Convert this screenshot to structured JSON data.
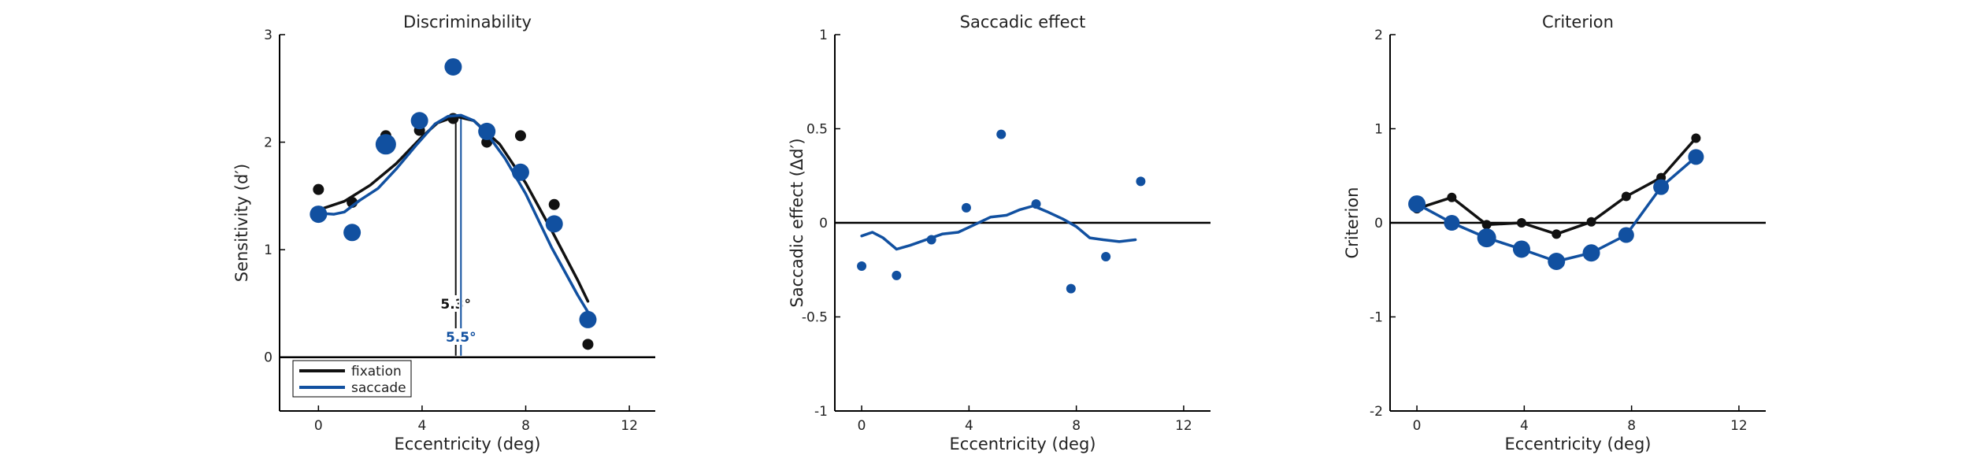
{
  "colors": {
    "fixation": "#111111",
    "saccade": "#1150a0",
    "axis": "#000000"
  },
  "chart_data": [
    {
      "type": "scatter",
      "title": "Discriminability",
      "xlabel": "Eccentricity (deg)",
      "ylabel": "Sensitivity (d′)",
      "xlim": [
        -1.5,
        13
      ],
      "ylim": [
        -0.5,
        3
      ],
      "xticks": [
        0,
        4,
        8,
        12
      ],
      "yticks": [
        0,
        1,
        2,
        3
      ],
      "zero_line": 0,
      "legend": {
        "placement": "bottom-left",
        "entries": [
          "fixation",
          "saccade"
        ]
      },
      "series": [
        {
          "name": "fixation",
          "color_key": "fixation",
          "x": [
            0,
            1.3,
            2.6,
            3.9,
            5.2,
            6.5,
            7.8,
            9.1,
            10.4
          ],
          "y": [
            1.56,
            1.44,
            2.06,
            2.11,
            2.22,
            2.0,
            2.06,
            1.42,
            0.12
          ],
          "marker_scale": [
            7,
            7,
            7,
            7,
            7,
            7,
            7,
            7,
            7
          ],
          "fit": [
            [
              0,
              1.37
            ],
            [
              1,
              1.45
            ],
            [
              2,
              1.6
            ],
            [
              3,
              1.8
            ],
            [
              4,
              2.05
            ],
            [
              4.6,
              2.18
            ],
            [
              5.3,
              2.24
            ],
            [
              6,
              2.2
            ],
            [
              7,
              1.98
            ],
            [
              8,
              1.62
            ],
            [
              9,
              1.18
            ],
            [
              10,
              0.72
            ],
            [
              10.4,
              0.52
            ]
          ]
        },
        {
          "name": "saccade",
          "color_key": "saccade",
          "x": [
            0,
            1.3,
            2.6,
            3.9,
            5.2,
            6.5,
            7.8,
            9.1,
            10.4
          ],
          "y": [
            1.33,
            1.16,
            1.98,
            2.2,
            2.7,
            2.1,
            1.72,
            1.24,
            0.35
          ],
          "marker_scale": [
            11,
            11,
            13,
            11,
            11,
            11,
            11,
            11,
            11
          ],
          "fit": [
            [
              0,
              1.34
            ],
            [
              0.6,
              1.33
            ],
            [
              1,
              1.35
            ],
            [
              1.6,
              1.46
            ],
            [
              2.3,
              1.57
            ],
            [
              3,
              1.75
            ],
            [
              3.8,
              1.98
            ],
            [
              4.5,
              2.17
            ],
            [
              5,
              2.24
            ],
            [
              5.5,
              2.25
            ],
            [
              6,
              2.2
            ],
            [
              6.5,
              2.08
            ],
            [
              7.2,
              1.85
            ],
            [
              8,
              1.52
            ],
            [
              9,
              1.02
            ],
            [
              10,
              0.58
            ],
            [
              10.4,
              0.42
            ]
          ]
        }
      ],
      "peaks": [
        {
          "series": "fixation",
          "x": 5.3,
          "y": 2.24,
          "label": "5.3°"
        },
        {
          "series": "saccade",
          "x": 5.5,
          "y": 2.25,
          "label": "5.5°"
        }
      ]
    },
    {
      "type": "scatter",
      "title": "Saccadic effect",
      "xlabel": "Eccentricity (deg)",
      "ylabel": "Saccadic effect (Δd′)",
      "xlim": [
        -1,
        13
      ],
      "ylim": [
        -1,
        1
      ],
      "xticks": [
        0,
        4,
        8,
        12
      ],
      "yticks": [
        -1,
        -0.5,
        0,
        0.5,
        1
      ],
      "ytick_labels": [
        "-1",
        "-0.5",
        "0",
        "0.5",
        "1"
      ],
      "zero_line": 0,
      "series": [
        {
          "name": "",
          "color_key": "saccade",
          "x": [
            0,
            1.3,
            2.6,
            3.9,
            5.2,
            6.5,
            7.8,
            9.1,
            10.4
          ],
          "y": [
            -0.23,
            -0.28,
            -0.09,
            0.08,
            0.47,
            0.1,
            -0.35,
            -0.18,
            0.22
          ],
          "marker_scale": [
            6,
            6,
            6,
            6,
            6,
            6,
            6,
            6,
            6
          ],
          "fit": [
            [
              0,
              -0.07
            ],
            [
              0.4,
              -0.05
            ],
            [
              0.8,
              -0.08
            ],
            [
              1.3,
              -0.14
            ],
            [
              1.8,
              -0.12
            ],
            [
              2.4,
              -0.09
            ],
            [
              3,
              -0.06
            ],
            [
              3.6,
              -0.05
            ],
            [
              4.2,
              -0.01
            ],
            [
              4.8,
              0.03
            ],
            [
              5.4,
              0.04
            ],
            [
              5.9,
              0.07
            ],
            [
              6.4,
              0.09
            ],
            [
              6.9,
              0.06
            ],
            [
              7.5,
              0.02
            ],
            [
              8,
              -0.02
            ],
            [
              8.5,
              -0.08
            ],
            [
              9,
              -0.09
            ],
            [
              9.6,
              -0.1
            ],
            [
              10.2,
              -0.09
            ]
          ]
        }
      ]
    },
    {
      "type": "line",
      "title": "Criterion",
      "xlabel": "Eccentricity (deg)",
      "ylabel": "Criterion",
      "xlim": [
        -1,
        13
      ],
      "ylim": [
        -2,
        2
      ],
      "xticks": [
        0,
        4,
        8,
        12
      ],
      "yticks": [
        -2,
        -1,
        0,
        1,
        2
      ],
      "ytick_labels": [
        "-2",
        "-1",
        "0",
        "1",
        "2"
      ],
      "zero_line": 0,
      "series": [
        {
          "name": "fixation",
          "color_key": "fixation",
          "x": [
            0,
            1.3,
            2.6,
            3.9,
            5.2,
            6.5,
            7.8,
            9.1,
            10.4
          ],
          "y": [
            0.15,
            0.27,
            -0.02,
            0.0,
            -0.12,
            0.01,
            0.28,
            0.48,
            0.9
          ],
          "marker_scale": [
            6,
            6,
            6,
            6,
            6,
            6,
            6,
            6,
            6
          ]
        },
        {
          "name": "saccade",
          "color_key": "saccade",
          "x": [
            0,
            1.3,
            2.6,
            3.9,
            5.2,
            6.5,
            7.8,
            9.1,
            10.4
          ],
          "y": [
            0.2,
            0.0,
            -0.16,
            -0.28,
            -0.41,
            -0.32,
            -0.13,
            0.38,
            0.7
          ],
          "marker_scale": [
            11,
            10,
            12,
            11,
            11,
            11,
            10,
            10,
            10
          ]
        }
      ]
    }
  ]
}
